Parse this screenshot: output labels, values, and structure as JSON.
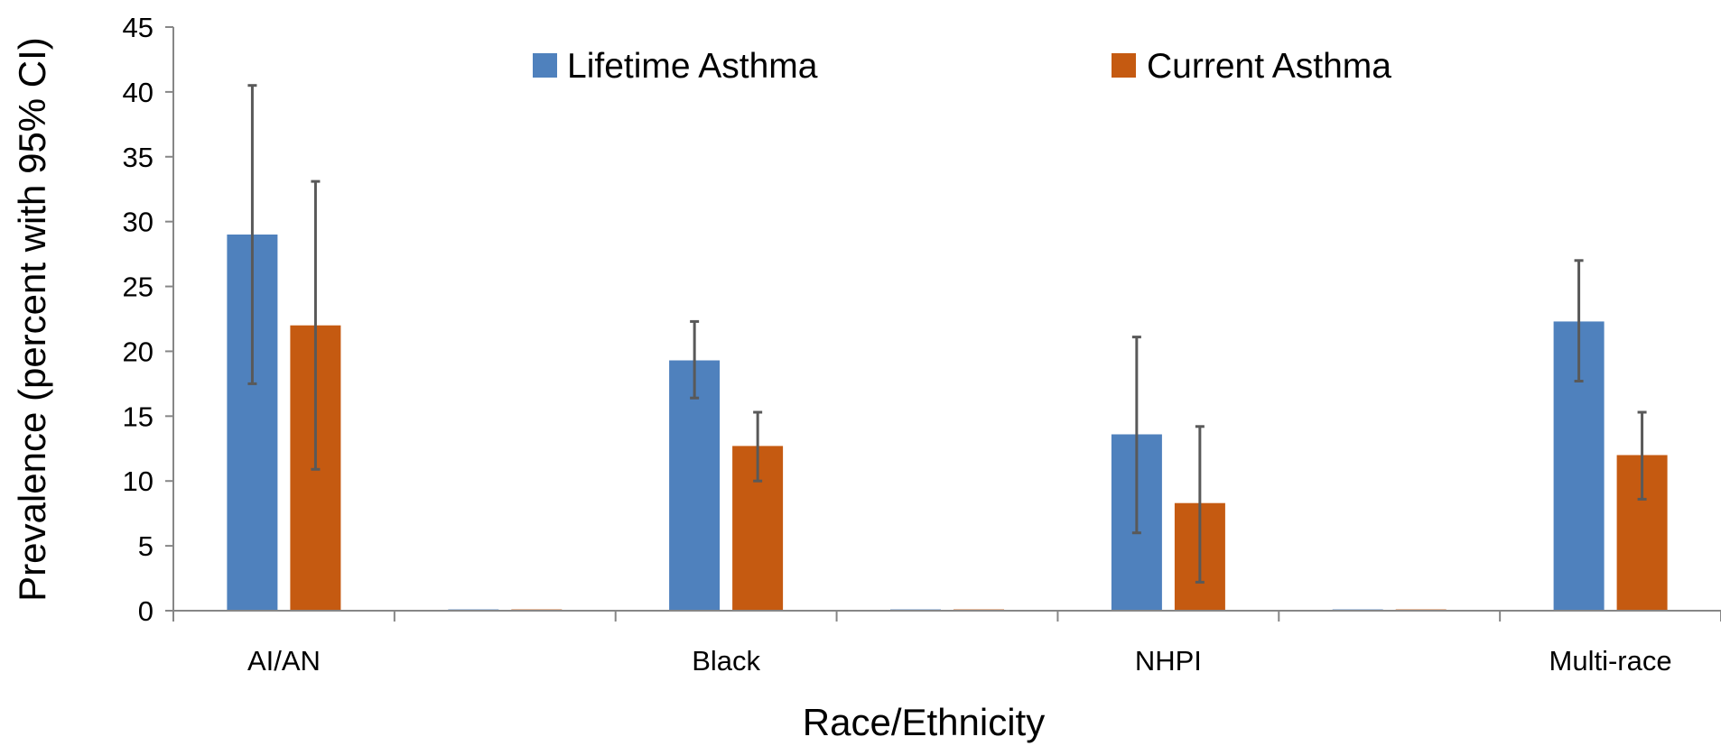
{
  "chart_data": {
    "type": "bar",
    "xlabel": "Race/Ethnicity",
    "ylabel": "Prevalence (percent with 95% CI)",
    "ylim": [
      0,
      45
    ],
    "yticks": [
      0,
      5,
      10,
      15,
      20,
      25,
      30,
      35,
      40,
      45
    ],
    "categories": [
      "AI/AN",
      "",
      "Black",
      "",
      "NHPI",
      "",
      "Multi-race"
    ],
    "series": [
      {
        "name": "Lifetime Asthma",
        "color": "#4F81BD",
        "values": [
          29.0,
          0.1,
          19.3,
          0.1,
          13.6,
          0.1,
          22.3
        ],
        "ci_low": [
          17.5,
          null,
          16.4,
          null,
          6.0,
          null,
          17.7
        ],
        "ci_high": [
          40.5,
          null,
          22.3,
          null,
          21.1,
          null,
          27.0
        ]
      },
      {
        "name": "Current Asthma",
        "color": "#C55A11",
        "values": [
          22.0,
          0.1,
          12.7,
          0.1,
          8.3,
          0.1,
          12.0
        ],
        "ci_low": [
          10.9,
          null,
          10.0,
          null,
          2.2,
          null,
          8.6
        ],
        "ci_high": [
          33.1,
          null,
          15.3,
          null,
          14.2,
          null,
          15.3
        ]
      }
    ],
    "legend": "top",
    "grid": false,
    "error_bar_color": "#595959",
    "axis_color": "#868686"
  }
}
